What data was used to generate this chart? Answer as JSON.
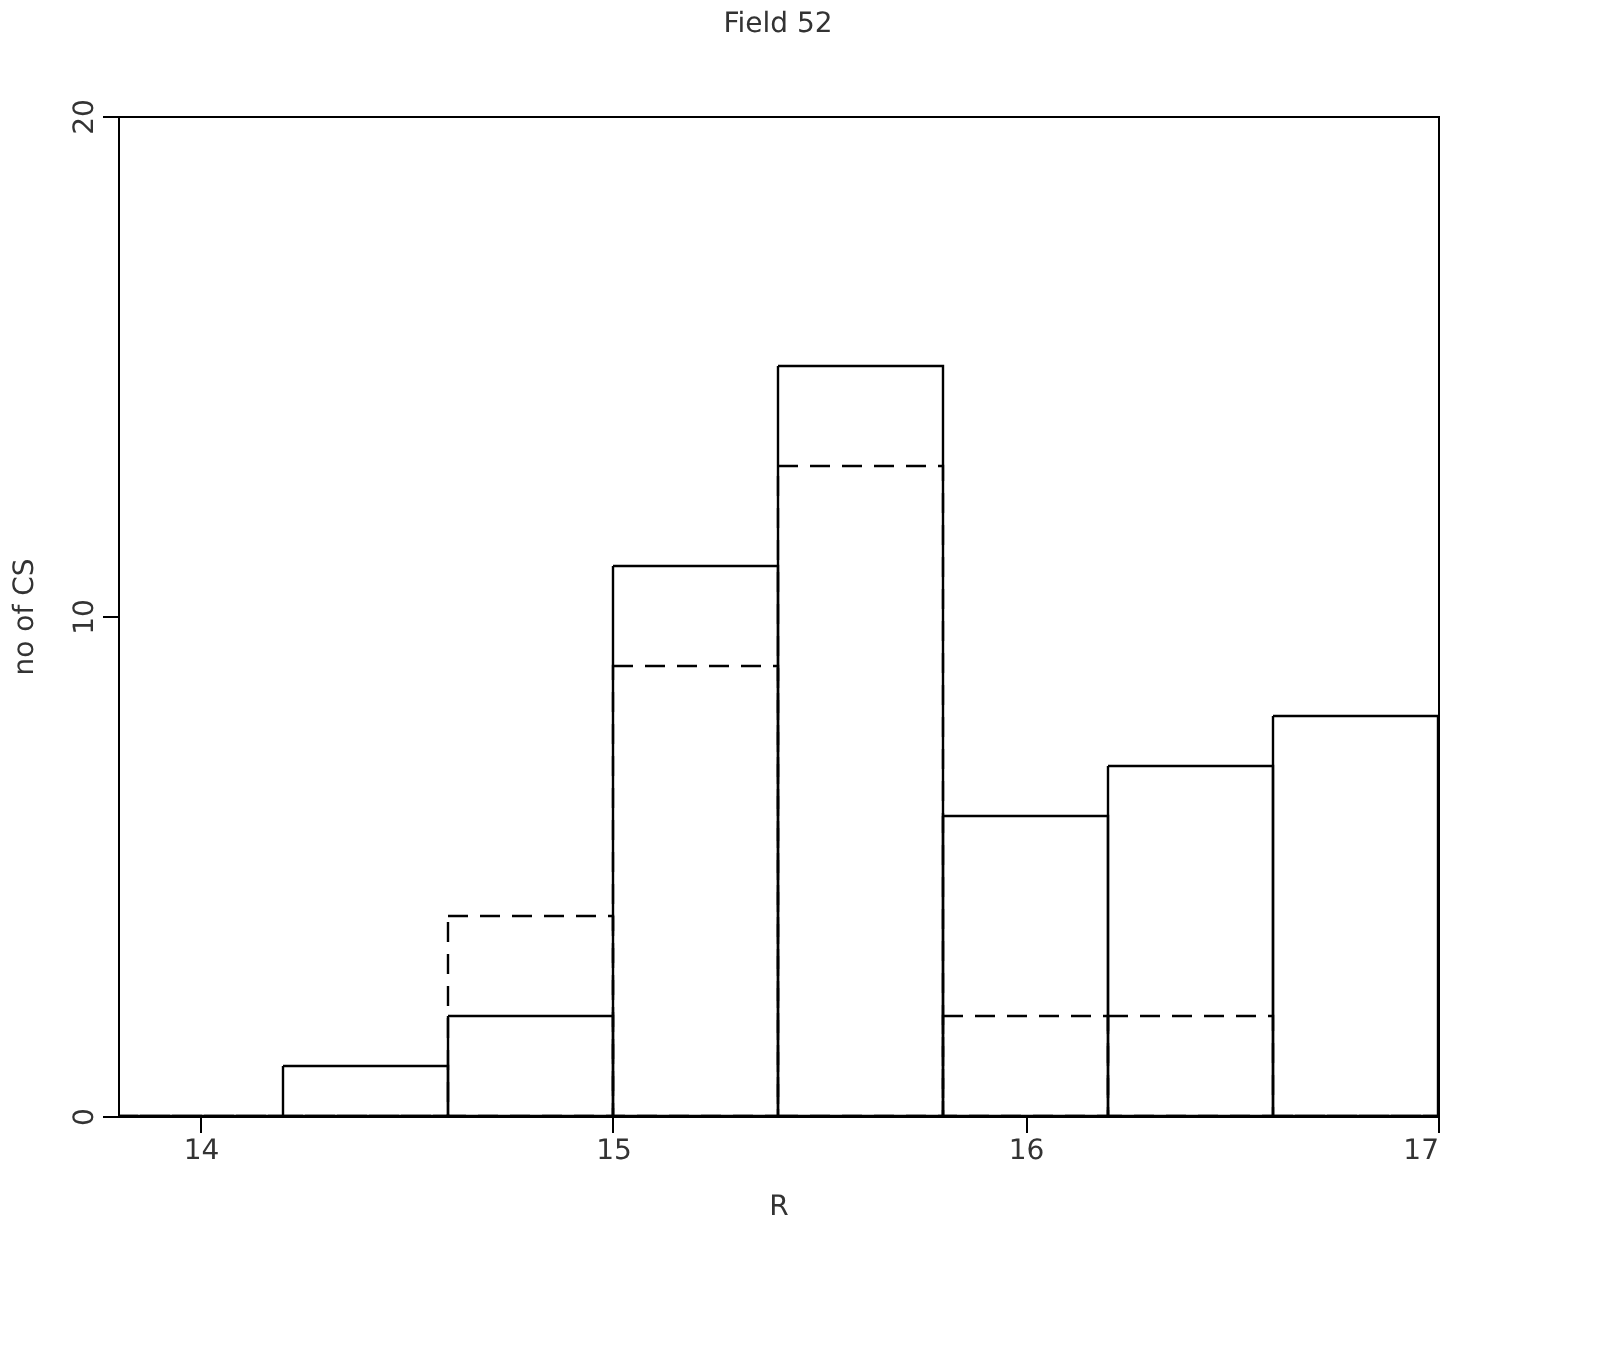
{
  "chart_data": {
    "type": "histogram",
    "title": "Field 52",
    "xlabel": "R",
    "ylabel": "no of CS",
    "bins": [
      13.8,
      14.2,
      14.6,
      15.0,
      15.4,
      15.8,
      16.2,
      16.6,
      17.0
    ],
    "series": [
      {
        "color": "#000000",
        "line_style": "solid",
        "values": [
          0,
          1,
          2,
          11,
          15,
          6,
          7,
          8
        ]
      },
      {
        "color": "#000000",
        "line_style": "dashed",
        "values": [
          0,
          0,
          4,
          9,
          13,
          2,
          2,
          0
        ]
      }
    ],
    "xlim": [
      13.8,
      17
    ],
    "xticks": [
      14,
      15,
      16,
      17
    ],
    "ylim": [
      0,
      20
    ],
    "yticks": [
      0,
      10,
      20
    ],
    "grid": false
  }
}
